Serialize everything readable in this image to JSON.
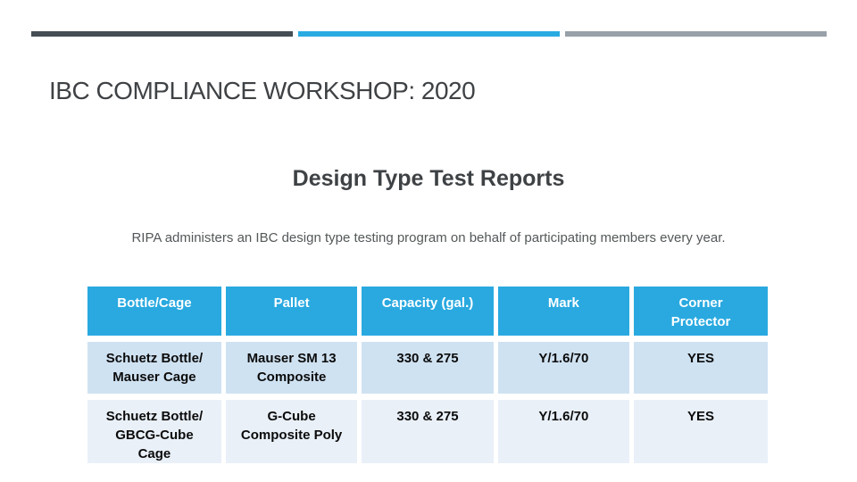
{
  "slide": {
    "title": "IBC COMPLIANCE WORKSHOP: 2020",
    "subtitle": "Design Type Test Reports",
    "body": "RIPA administers an IBC design type testing program on behalf of participating members every year."
  },
  "accent_bars": {
    "colors": [
      "#454e54",
      "#29abe2",
      "#98a1a8"
    ]
  },
  "table": {
    "header_bg": "#29a9e0",
    "row_odd_bg": "#cfe2f2",
    "row_even_bg": "#e9f0f8",
    "headers": [
      "Bottle/Cage",
      "Pallet",
      "Capacity (gal.)",
      "Mark",
      "Corner\nProtector"
    ],
    "rows": [
      [
        "Schuetz Bottle/\nMauser Cage",
        "Mauser SM 13\nComposite",
        "330 & 275",
        "Y/1.6/70",
        "YES"
      ],
      [
        "Schuetz Bottle/\nGBCG-Cube\nCage",
        "G-Cube\nComposite Poly",
        "330 & 275",
        "Y/1.6/70",
        "YES"
      ]
    ]
  }
}
